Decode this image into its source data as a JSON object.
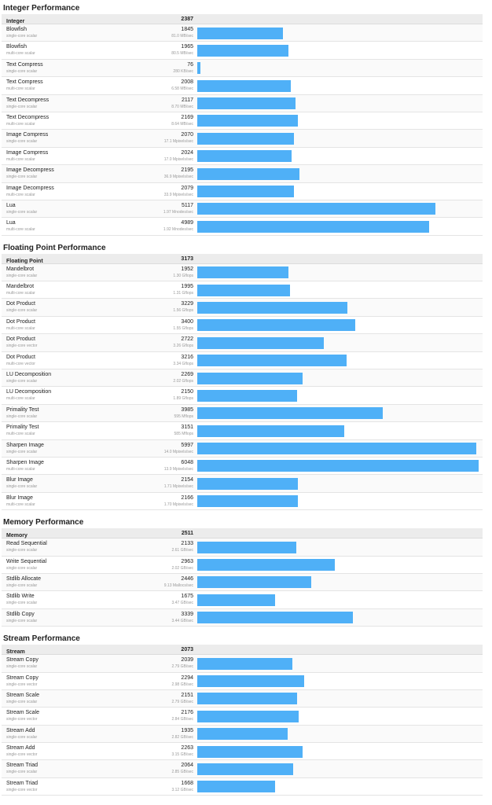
{
  "sections": [
    {
      "title": "Integer Performance",
      "header": {
        "name": "Integer",
        "score": 2387
      },
      "rows": [
        {
          "name": "Blowfish",
          "sub": "single-core scalar",
          "score": 1845,
          "rate": "81.0 MB/sec"
        },
        {
          "name": "Blowfish",
          "sub": "multi-core scalar",
          "score": 1965,
          "rate": "80.5 MB/sec"
        },
        {
          "name": "Text Compress",
          "sub": "single-core scalar",
          "score": 76,
          "rate": "280 KB/sec"
        },
        {
          "name": "Text Compress",
          "sub": "multi-core scalar",
          "score": 2008,
          "rate": "6.58 MB/sec"
        },
        {
          "name": "Text Decompress",
          "sub": "single-core scalar",
          "score": 2117,
          "rate": "8.70 MB/sec"
        },
        {
          "name": "Text Decompress",
          "sub": "multi-core scalar",
          "score": 2169,
          "rate": "8.64 MB/sec"
        },
        {
          "name": "Image Compress",
          "sub": "single-core scalar",
          "score": 2070,
          "rate": "17.1 Mpixels/sec"
        },
        {
          "name": "Image Compress",
          "sub": "multi-core scalar",
          "score": 2024,
          "rate": "17.0 Mpixels/sec"
        },
        {
          "name": "Image Decompress",
          "sub": "single-core scalar",
          "score": 2195,
          "rate": "36.9 Mpixels/sec"
        },
        {
          "name": "Image Decompress",
          "sub": "multi-core scalar",
          "score": 2079,
          "rate": "33.9 Mpixels/sec"
        },
        {
          "name": "Lua",
          "sub": "single-core scalar",
          "score": 5117,
          "rate": "1.97 Mnodes/sec"
        },
        {
          "name": "Lua",
          "sub": "multi-core scalar",
          "score": 4989,
          "rate": "1.92 Mnodes/sec"
        }
      ]
    },
    {
      "title": "Floating Point Performance",
      "header": {
        "name": "Floating Point",
        "score": 3173
      },
      "rows": [
        {
          "name": "Mandelbrot",
          "sub": "single-core scalar",
          "score": 1952,
          "rate": "1.30 Gflops"
        },
        {
          "name": "Mandelbrot",
          "sub": "multi-core scalar",
          "score": 1995,
          "rate": "1.31 Gflops"
        },
        {
          "name": "Dot Product",
          "sub": "single-core scalar",
          "score": 3229,
          "rate": "1.56 Gflops"
        },
        {
          "name": "Dot Product",
          "sub": "multi-core scalar",
          "score": 3400,
          "rate": "1.55 Gflops"
        },
        {
          "name": "Dot Product",
          "sub": "single-core vector",
          "score": 2722,
          "rate": "3.26 Gflops"
        },
        {
          "name": "Dot Product",
          "sub": "multi-core vector",
          "score": 3216,
          "rate": "3.34 Gflops"
        },
        {
          "name": "LU Decomposition",
          "sub": "single-core scalar",
          "score": 2269,
          "rate": "2.02 Gflops"
        },
        {
          "name": "LU Decomposition",
          "sub": "multi-core scalar",
          "score": 2150,
          "rate": "1.89 Gflops"
        },
        {
          "name": "Primality Test",
          "sub": "single-core scalar",
          "score": 3985,
          "rate": "595 Mflops"
        },
        {
          "name": "Primality Test",
          "sub": "multi-core scalar",
          "score": 3151,
          "rate": "585 Mflops"
        },
        {
          "name": "Sharpen Image",
          "sub": "single-core scalar",
          "score": 5997,
          "rate": "14.0 Mpixels/sec"
        },
        {
          "name": "Sharpen Image",
          "sub": "multi-core scalar",
          "score": 6048,
          "rate": "13.9 Mpixels/sec"
        },
        {
          "name": "Blur Image",
          "sub": "single-core scalar",
          "score": 2154,
          "rate": "1.71 Mpixels/sec"
        },
        {
          "name": "Blur Image",
          "sub": "multi-core scalar",
          "score": 2166,
          "rate": "1.70 Mpixels/sec"
        }
      ]
    },
    {
      "title": "Memory Performance",
      "header": {
        "name": "Memory",
        "score": 2511
      },
      "rows": [
        {
          "name": "Read Sequential",
          "sub": "single-core scalar",
          "score": 2133,
          "rate": "2.61 GB/sec"
        },
        {
          "name": "Write Sequential",
          "sub": "single-core scalar",
          "score": 2963,
          "rate": "2.02 GB/sec"
        },
        {
          "name": "Stdlib Allocate",
          "sub": "single-core scalar",
          "score": 2446,
          "rate": "9.13 Mallocs/sec"
        },
        {
          "name": "Stdlib Write",
          "sub": "single-core scalar",
          "score": 1675,
          "rate": "3.47 GB/sec"
        },
        {
          "name": "Stdlib Copy",
          "sub": "single-core scalar",
          "score": 3339,
          "rate": "3.44 GB/sec"
        }
      ]
    },
    {
      "title": "Stream Performance",
      "header": {
        "name": "Stream",
        "score": 2073
      },
      "rows": [
        {
          "name": "Stream Copy",
          "sub": "single-core scalar",
          "score": 2039,
          "rate": "2.79 GB/sec"
        },
        {
          "name": "Stream Copy",
          "sub": "single-core vector",
          "score": 2294,
          "rate": "2.98 GB/sec"
        },
        {
          "name": "Stream Scale",
          "sub": "single-core scalar",
          "score": 2151,
          "rate": "2.79 GB/sec"
        },
        {
          "name": "Stream Scale",
          "sub": "single-core vector",
          "score": 2176,
          "rate": "2.84 GB/sec"
        },
        {
          "name": "Stream Add",
          "sub": "single-core scalar",
          "score": 1935,
          "rate": "2.82 GB/sec"
        },
        {
          "name": "Stream Add",
          "sub": "single-core vector",
          "score": 2263,
          "rate": "3.15 GB/sec"
        },
        {
          "name": "Stream Triad",
          "sub": "single-core scalar",
          "score": 2064,
          "rate": "2.85 GB/sec"
        },
        {
          "name": "Stream Triad",
          "sub": "single-core vector",
          "score": 1668,
          "rate": "3.12 GB/sec"
        }
      ]
    }
  ]
}
